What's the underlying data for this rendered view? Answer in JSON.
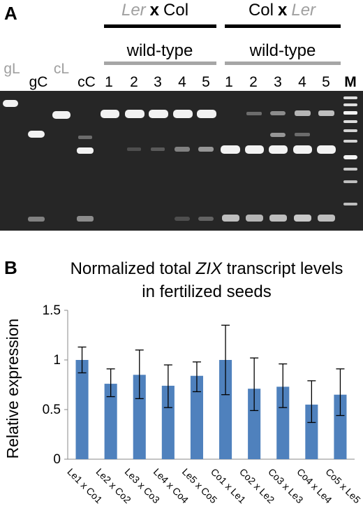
{
  "panel_a": {
    "letter": "A",
    "crosses": [
      {
        "female": "Ler",
        "x": "x",
        "male": "Col"
      },
      {
        "female": "Col",
        "x": "x",
        "male": "Ler"
      }
    ],
    "group_label": "wild-type",
    "controls": [
      "gL",
      "gC",
      "cL",
      "cC"
    ],
    "lanes": [
      "1",
      "2",
      "3",
      "4",
      "5"
    ],
    "marker": "M",
    "colors": {
      "gel": "#262626",
      "band": "#f2f2f2",
      "bar_black": "#000000",
      "bar_grey": "#a6a6a6",
      "grey_text": "#a0a0a0"
    }
  },
  "chart_data": {
    "type": "bar",
    "panel": "B",
    "title_parts": [
      "Normalized total ",
      "ZIX",
      " transcript levels"
    ],
    "title_line2": "in fertilized seeds",
    "ylabel": "Relative expression",
    "xlabel": "",
    "ylim": [
      0,
      1.5
    ],
    "yticks": [
      "0",
      "0.5",
      "1",
      "1.5"
    ],
    "categories": [
      "Le1 x Co1",
      "Le2 x Co2",
      "Le3 x Co3",
      "Le4 x Co4",
      "Le5 x Co5",
      "Co1 x Le1",
      "Co2 x Le2",
      "Co3 x Le3",
      "Co4 x Le4",
      "Co5 x Le5"
    ],
    "values": [
      1.0,
      0.76,
      0.85,
      0.74,
      0.84,
      1.0,
      0.71,
      0.73,
      0.55,
      0.65
    ],
    "err_high": [
      1.13,
      0.91,
      1.1,
      0.95,
      0.98,
      1.35,
      1.02,
      0.96,
      0.79,
      0.91
    ],
    "err_low": [
      0.87,
      0.63,
      0.61,
      0.52,
      0.68,
      0.65,
      0.49,
      0.52,
      0.37,
      0.44
    ],
    "bar_color": "#4f81bd",
    "grid": false,
    "legend": "none"
  }
}
